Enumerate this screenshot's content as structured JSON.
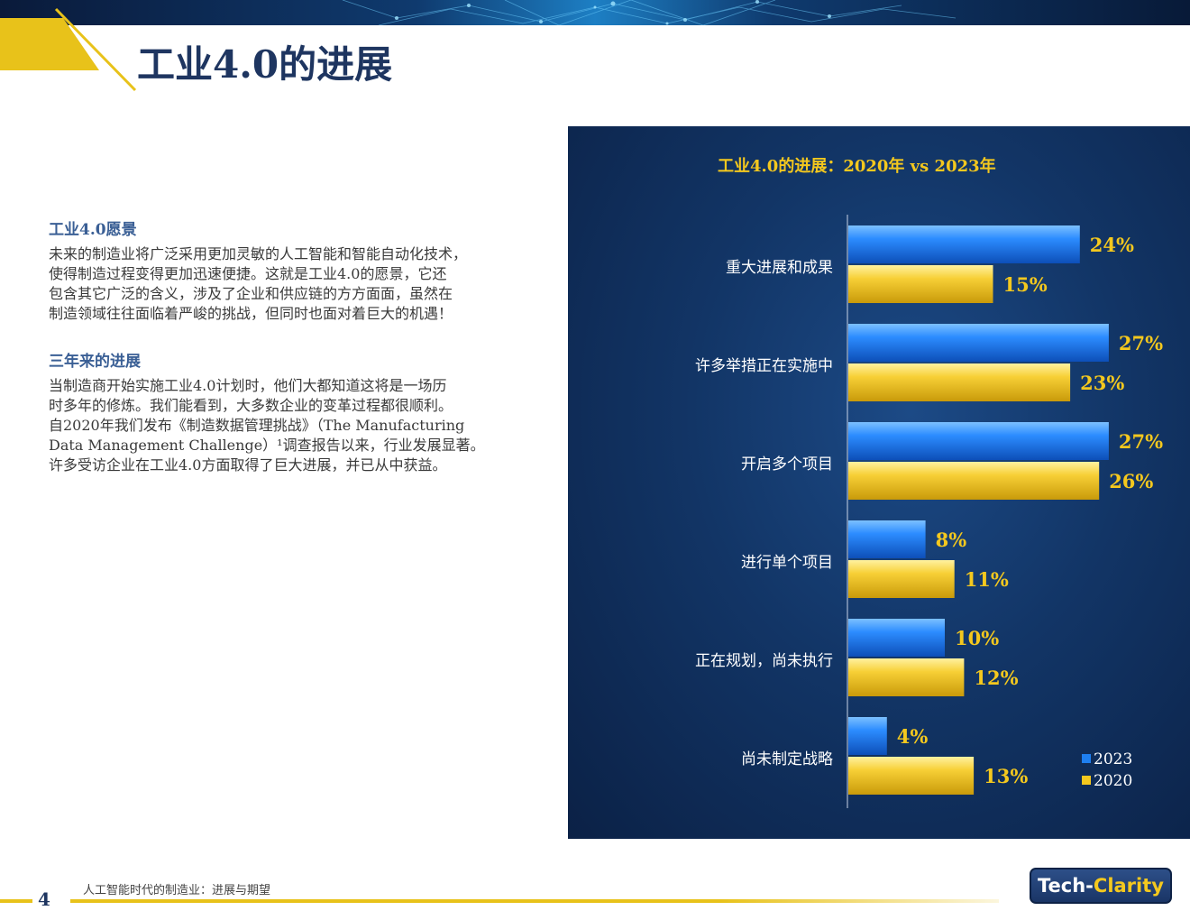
{
  "page": {
    "title": "工业4.0的进展",
    "page_number": "4",
    "footer_text": "人工智能时代的制造业：进展与期望",
    "logo": {
      "part1": "Tech-",
      "part2": "Clarity"
    }
  },
  "sections": [
    {
      "heading": "工业4.0愿景",
      "lines": [
        "未来的制造业将广泛采用更加灵敏的人工智能和智能自动化技术，",
        "使得制造过程变得更加迅速便捷。这就是工业4.0的愿景，它还",
        "包含其它广泛的含义，涉及了企业和供应链的方方面面，虽然在",
        "制造领域往往面临着严峻的挑战，但同时也面对着巨大的机遇！"
      ]
    },
    {
      "heading": "三年来的进展",
      "lines": [
        "当制造商开始实施工业4.0计划时，他们大都知道这将是一场历",
        "时多年的修炼。我们能看到，大多数企业的变革过程都很顺利。",
        "自2020年我们发布《制造数据管理挑战》（The Manufacturing",
        "Data Management Challenge）¹调查报告以来，行业发展显著。",
        "许多受访企业在工业4.0方面取得了巨大进展，并已从中获益。"
      ]
    }
  ],
  "colors": {
    "series_2023": "#1e7ff0",
    "series_2020": "#f4c81e",
    "panel_bg": "#123566",
    "title_blue": "#1e3560",
    "heading_blue": "#3a5f95",
    "label_yellow": "#f4c81e"
  },
  "chart_data": {
    "type": "bar",
    "orientation": "horizontal",
    "title": "工业4.0的进展：2020年 vs 2023年",
    "categories": [
      "重大进展和成果",
      "许多举措正在实施中",
      "开启多个项目",
      "进行单个项目",
      "正在规划，尚未执行",
      "尚未制定战略"
    ],
    "series": [
      {
        "name": "2023",
        "values": [
          24,
          27,
          27,
          8,
          10,
          4
        ],
        "labels": [
          "24%",
          "27%",
          "27%",
          "8%",
          "10%",
          "4%"
        ]
      },
      {
        "name": "2020",
        "values": [
          15,
          23,
          26,
          11,
          12,
          13
        ],
        "labels": [
          "15%",
          "23%",
          "26%",
          "11%",
          "12%",
          "13%"
        ]
      }
    ],
    "unit": "%",
    "xlim": [
      0,
      30
    ],
    "grid": false,
    "legend": "bottom-right"
  }
}
